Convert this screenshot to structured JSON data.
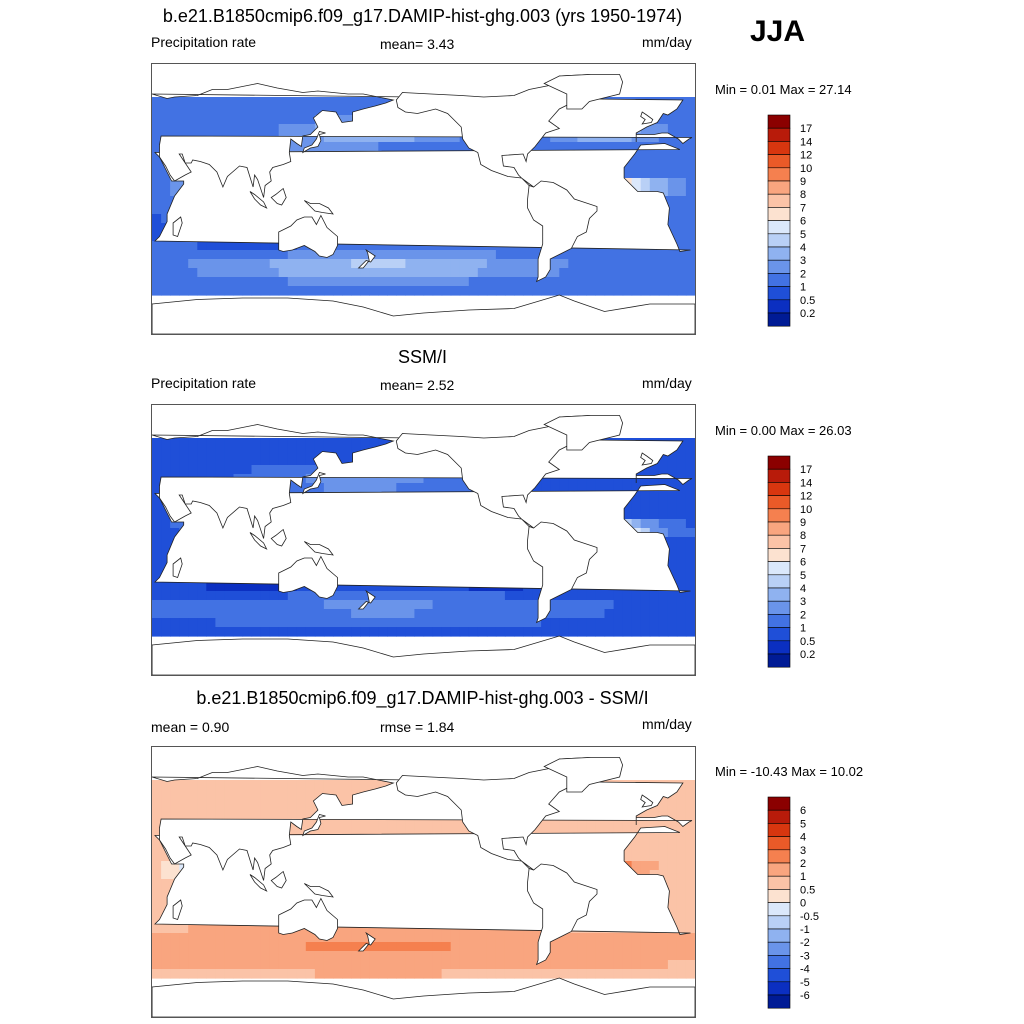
{
  "season_label": "JJA",
  "panels": [
    {
      "title": "b.e21.B1850cmip6.f09_g17.DAMIP-hist-ghg.003 (yrs 1950-1974)",
      "left_label": "Precipitation rate",
      "center_label": "mean=   3.43",
      "right_label": "mm/day",
      "minmax": "Min =   0.01 Max =  27.14"
    },
    {
      "title": "SSM/I",
      "left_label": "Precipitation rate",
      "center_label": "mean=   2.52",
      "right_label": "mm/day",
      "minmax": "Min =   0.00 Max =  26.03"
    },
    {
      "title": "b.e21.B1850cmip6.f09_g17.DAMIP-hist-ghg.003 - SSM/I",
      "left_label": "mean =   0.90",
      "center_label": "rmse =   1.84",
      "right_label": "mm/day",
      "minmax": "Min = -10.43 Max =  10.02"
    }
  ],
  "chart_data": [
    {
      "type": "heatmap",
      "title": "b.e21.B1850cmip6.f09_g17.DAMIP-hist-ghg.003 (yrs 1950-1974)",
      "variable": "Precipitation rate",
      "units": "mm/day",
      "mean": 3.43,
      "min": 0.01,
      "max": 27.14,
      "colorbar_labels": [
        "17",
        "14",
        "12",
        "10",
        "9",
        "8",
        "7",
        "6",
        "5",
        "4",
        "3",
        "2",
        "1",
        "0.5",
        "0.2"
      ],
      "colorbar_colors": [
        "#8b0000",
        "#b81b0a",
        "#d8360f",
        "#ea5a28",
        "#f5804f",
        "#f9a57f",
        "#fbc3a7",
        "#fce2d0",
        "#dbe8fb",
        "#b9d0f6",
        "#8fb2f0",
        "#6a94ea",
        "#4272e3",
        "#1f4fd8",
        "#0b2fc1",
        "#001b95"
      ]
    },
    {
      "type": "heatmap",
      "title": "SSM/I",
      "variable": "Precipitation rate",
      "units": "mm/day",
      "mean": 2.52,
      "min": 0.0,
      "max": 26.03,
      "colorbar_labels": [
        "17",
        "14",
        "12",
        "10",
        "9",
        "8",
        "7",
        "6",
        "5",
        "4",
        "3",
        "2",
        "1",
        "0.5",
        "0.2"
      ],
      "colorbar_colors": [
        "#8b0000",
        "#b81b0a",
        "#d8360f",
        "#ea5a28",
        "#f5804f",
        "#f9a57f",
        "#fbc3a7",
        "#fce2d0",
        "#dbe8fb",
        "#b9d0f6",
        "#8fb2f0",
        "#6a94ea",
        "#4272e3",
        "#1f4fd8",
        "#0b2fc1",
        "#001b95"
      ]
    },
    {
      "type": "heatmap",
      "title": "b.e21.B1850cmip6.f09_g17.DAMIP-hist-ghg.003 - SSM/I",
      "units": "mm/day",
      "mean": 0.9,
      "rmse": 1.84,
      "min": -10.43,
      "max": 10.02,
      "colorbar_labels": [
        "6",
        "5",
        "4",
        "3",
        "2",
        "1",
        "0.5",
        "0",
        "-0.5",
        "-1",
        "-2",
        "-3",
        "-4",
        "-5",
        "-6"
      ],
      "colorbar_colors": [
        "#8b0000",
        "#b81b0a",
        "#d8360f",
        "#ea5a28",
        "#f5804f",
        "#f9a57f",
        "#fbc3a7",
        "#fce2d0",
        "#dbe8fb",
        "#b9d0f6",
        "#8fb2f0",
        "#6a94ea",
        "#4272e3",
        "#1f4fd8",
        "#0b2fc1",
        "#001b95"
      ]
    }
  ]
}
